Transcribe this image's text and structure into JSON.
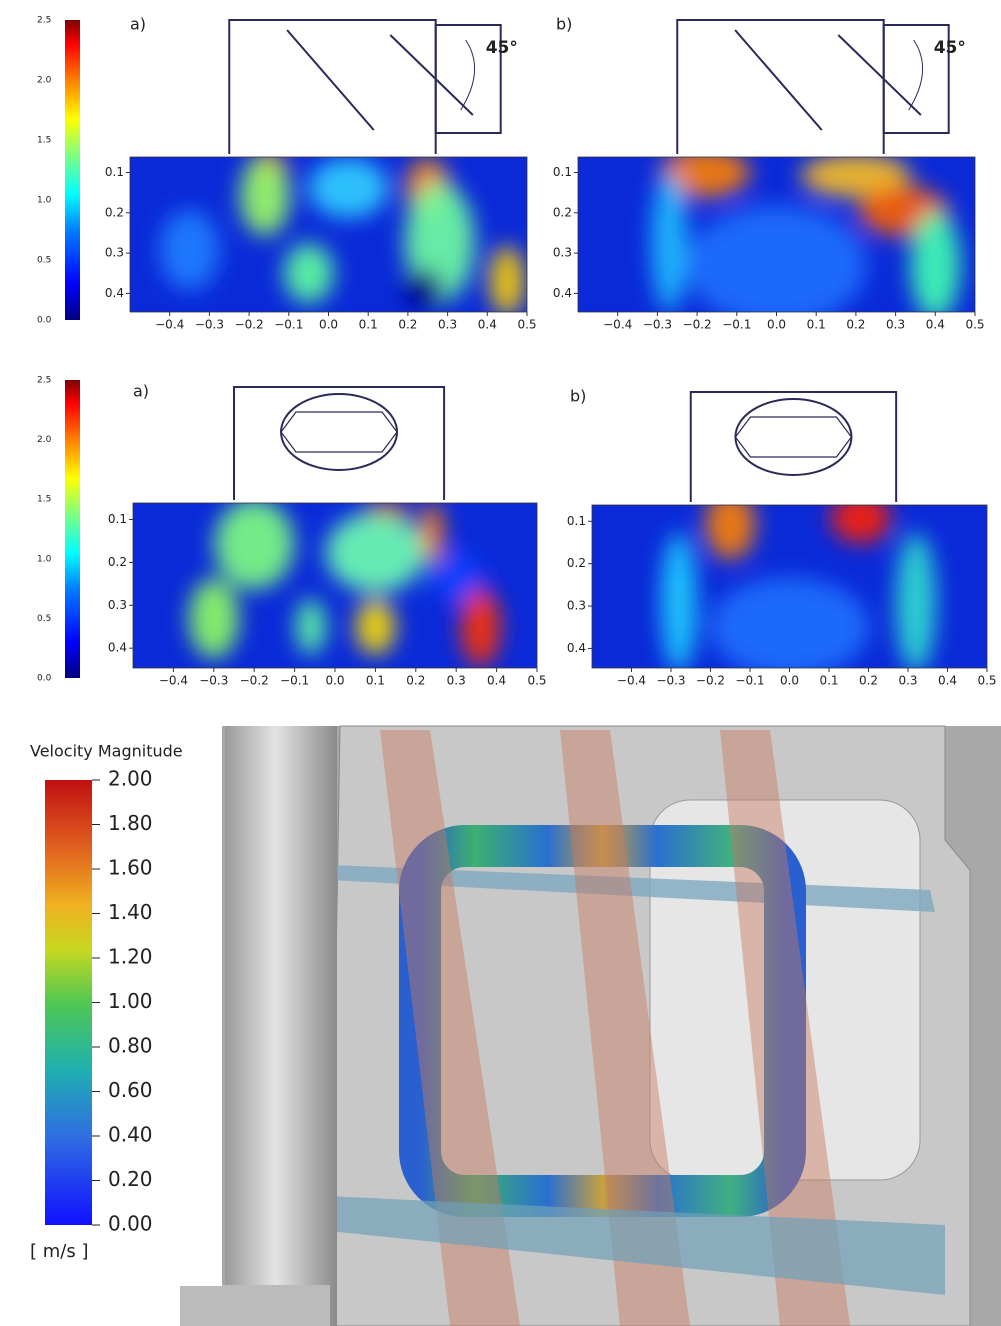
{
  "figure_top": {
    "colorbar_labels": [
      "0.0",
      "0.5",
      "1.0",
      "1.5",
      "2.0",
      "2.5"
    ],
    "panels": [
      {
        "label": "a)",
        "angle": "45°",
        "yticks": [
          "0.1",
          "0.2",
          "0.3",
          "0.4"
        ],
        "xticks": [
          "−0.4",
          "−0.3",
          "−0.2",
          "−0.1",
          "0.0",
          "0.1",
          "0.2",
          "0.3",
          "0.4",
          "0.5"
        ]
      },
      {
        "label": "b)",
        "angle": "45°",
        "yticks": [
          "0.1",
          "0.2",
          "0.3",
          "0.4"
        ],
        "xticks": [
          "−0.4",
          "−0.3",
          "−0.2",
          "−0.1",
          "0.0",
          "0.1",
          "0.2",
          "0.3",
          "0.4",
          "0.5"
        ]
      }
    ]
  },
  "figure_middle": {
    "colorbar_labels": [
      "0.0",
      "0.5",
      "1.0",
      "1.5",
      "2.0",
      "2.5"
    ],
    "panels": [
      {
        "label": "a)",
        "yticks": [
          "0.1",
          "0.2",
          "0.3",
          "0.4"
        ],
        "xticks": [
          "−0.4",
          "−0.3",
          "−0.2",
          "−0.1",
          "0.0",
          "0.1",
          "0.2",
          "0.3",
          "0.4",
          "0.5"
        ]
      },
      {
        "label": "b)",
        "yticks": [
          "0.1",
          "0.2",
          "0.3",
          "0.4"
        ],
        "xticks": [
          "−0.4",
          "−0.3",
          "−0.2",
          "−0.1",
          "0.0",
          "0.1",
          "0.2",
          "0.3",
          "0.4",
          "0.5"
        ]
      }
    ]
  },
  "figure_bottom": {
    "title": "Velocity Magnitude",
    "colorbar_labels": [
      "2.00",
      "1.80",
      "1.60",
      "1.40",
      "1.20",
      "1.00",
      "0.80",
      "0.60",
      "0.40",
      "0.20",
      "0.00"
    ],
    "unit": "[ m/s ]"
  }
}
